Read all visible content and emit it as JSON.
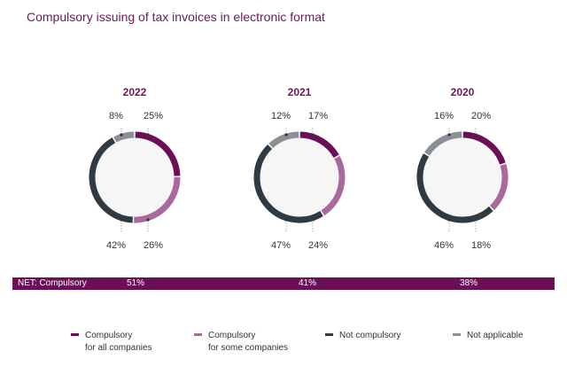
{
  "title": "Compulsory issuing of tax invoices in electronic format",
  "net": {
    "label": "NET: Compulsory",
    "values": [
      "51%",
      "41%",
      "38%"
    ]
  },
  "colors": {
    "title": "#6b1a57",
    "net_bar": "#6b0f57",
    "ring_background": "#f6f6f6"
  },
  "legend": [
    {
      "line1": "Compulsory",
      "line2": "for all companies",
      "color": "#6b0f57"
    },
    {
      "line1": "Compulsory",
      "line2": "for some companies",
      "color": "#a9699c"
    },
    {
      "line1": "Not compulsory",
      "line2": "",
      "color": "#2f3a42"
    },
    {
      "line1": "Not applicable",
      "line2": "",
      "color": "#8a9095"
    }
  ],
  "chart_data": [
    {
      "type": "pie",
      "title": "2022",
      "categories": [
        "Compulsory for all companies",
        "Compulsory for some companies",
        "Not compulsory",
        "Not applicable"
      ],
      "values": [
        25,
        26,
        42,
        8
      ],
      "labels": [
        "25%",
        "26%",
        "42%",
        "8%"
      ]
    },
    {
      "type": "pie",
      "title": "2021",
      "categories": [
        "Compulsory for all companies",
        "Compulsory for some companies",
        "Not compulsory",
        "Not applicable"
      ],
      "values": [
        17,
        24,
        47,
        12
      ],
      "labels": [
        "17%",
        "24%",
        "47%",
        "12%"
      ]
    },
    {
      "type": "pie",
      "title": "2020",
      "categories": [
        "Compulsory for all companies",
        "Compulsory for some companies",
        "Not compulsory",
        "Not applicable"
      ],
      "values": [
        20,
        18,
        46,
        16
      ],
      "labels": [
        "20%",
        "18%",
        "46%",
        "16%"
      ]
    }
  ]
}
